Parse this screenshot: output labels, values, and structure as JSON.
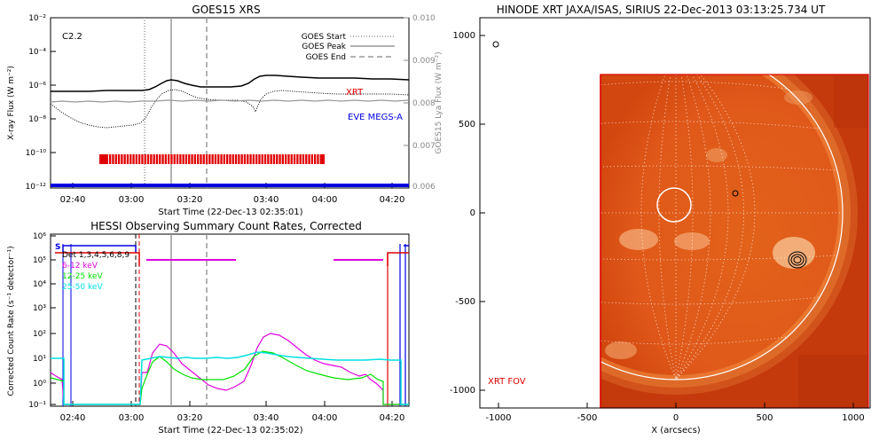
{
  "goes_panel": {
    "title": "GOES15 XRS",
    "class_label": "C2.2",
    "ylabel": "X-ray Flux (W m⁻²)",
    "ylabel_right": "GOES15 Lya Flux (W m⁻²)",
    "xlabel": "Start Time (22-Dec-13 02:35:01)",
    "yticks": [
      "10⁻²",
      "10⁻⁴",
      "10⁻⁶",
      "10⁻⁸",
      "10⁻¹⁰",
      "10⁻¹²"
    ],
    "yticks_right": [
      "0.010",
      "0.009",
      "0.008",
      "0.007",
      "0.006"
    ],
    "xticks": [
      "02:40",
      "03:00",
      "03:20",
      "03:40",
      "04:00",
      "04:20"
    ],
    "legend": {
      "start": "GOES Start",
      "peak": "GOES Peak",
      "end": "GOES End"
    },
    "xrt_label": "XRT",
    "eve_label": "EVE MEGS-A",
    "colors": {
      "xrt": "#e00000",
      "eve": "#0000e0"
    }
  },
  "hessi_panel": {
    "title": "HESSI Observing Summary Count Rates, Corrected",
    "ylabel": "Corrected Count Rate (s⁻¹ detector⁻¹)",
    "xlabel": "Start Time (22-Dec-13 02:35:02)",
    "yticks": [
      "10⁶",
      "10⁵",
      "10⁴",
      "10³",
      "10²",
      "10¹",
      "10⁰",
      "10⁻¹"
    ],
    "xticks": [
      "02:40",
      "03:00",
      "03:20",
      "03:40",
      "04:00",
      "04:20"
    ],
    "s_label": "S",
    "det_label": "Det 1,3,4,5,6,8,9",
    "bands": [
      {
        "label": "6-12 keV",
        "color": "#e000e0"
      },
      {
        "label": "12-25 keV",
        "color": "#00e000"
      },
      {
        "label": "25-50 keV",
        "color": "#00e0e0"
      }
    ]
  },
  "xrt_panel": {
    "title": "HINODE XRT JAXA/ISAS, SIRIUS 22-Dec-2013 03:13:25.734 UT",
    "xlabel": "X (arcsecs)",
    "xticks": [
      "-1000",
      "-500",
      "0",
      "500",
      "1000"
    ],
    "yticks": [
      "1000",
      "500",
      "0",
      "-500",
      "-1000"
    ],
    "fov_label": "XRT FOV"
  }
}
